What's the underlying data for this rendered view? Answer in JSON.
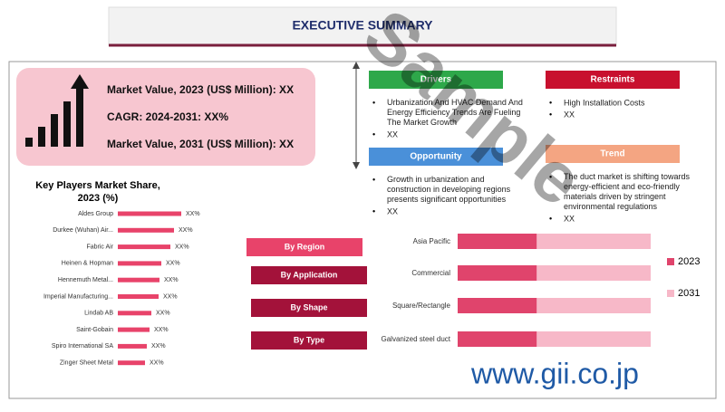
{
  "header": {
    "title": "EXECUTIVE SUMMARY"
  },
  "highlights": [
    "Market Value, 2023 (US$ Million): XX",
    "CAGR: 2024-2031: XX%",
    "Market Value, 2031 (US$ Million): XX"
  ],
  "key_players": {
    "title_lines": [
      "Key Players Market Share,",
      "2023 (%)"
    ],
    "categories": [
      "Aldes Group",
      "Durkee (Wuhan) Air...",
      "Fabric Air",
      "Heinen & Hopman",
      "Hennemuth Metal...",
      "Imperial Manufacturing...",
      "Lindab AB",
      "Saint-Gobain",
      "Spiro International SA",
      "Zinger Sheet Metal"
    ],
    "values": [
      70,
      62,
      58,
      48,
      46,
      45,
      37,
      35,
      32,
      30
    ],
    "value_labels": [
      "XX%",
      "XX%",
      "XX%",
      "XX%",
      "XX%",
      "XX%",
      "XX%",
      "XX%",
      "XX%",
      "XX%"
    ],
    "color": "#e8436a"
  },
  "panels": [
    {
      "heading": "Drivers",
      "color": "#2ea84a",
      "items": [
        "Urbanization And HVAC Demand And Energy Efficiency Trends Are Fueling The Market Growth",
        "XX"
      ]
    },
    {
      "heading": "Restraints",
      "color": "#c8102e",
      "items": [
        "High Installation Costs",
        "XX"
      ]
    },
    {
      "heading": "Opportunity",
      "color": "#4a90d9",
      "items": [
        "Growth in urbanization and construction in developing regions presents significant opportunities",
        "XX"
      ]
    },
    {
      "heading": "Trend",
      "color": "#f4a582",
      "items": [
        "The duct market is shifting towards energy-efficient and eco-friendly materials driven by stringent environmental regulations",
        "XX"
      ]
    }
  ],
  "segments": [
    "By Region",
    "By Application",
    "By Shape",
    "By Type"
  ],
  "chart_data": {
    "type": "bar",
    "stacked": true,
    "categories": [
      "Asia Pacific",
      "Commercial",
      "Square/Rectangle",
      "Galvanized steel duct"
    ],
    "series": [
      {
        "name": "2023",
        "color": "#e0446c",
        "values": [
          41,
          41,
          41,
          41
        ]
      },
      {
        "name": "2031",
        "color": "#f7b8c8",
        "values": [
          59,
          59,
          59,
          59
        ]
      }
    ],
    "xlim": [
      0,
      100
    ],
    "legend": "right"
  },
  "watermark": "Sample",
  "footer": "www.gii.co.jp"
}
